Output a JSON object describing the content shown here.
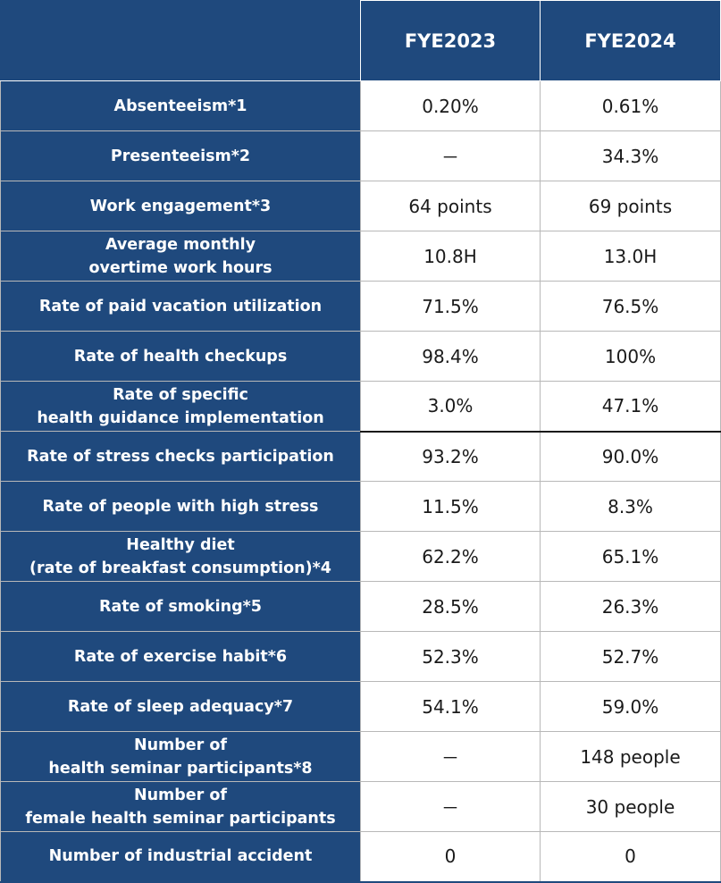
{
  "table": {
    "columns": [
      "",
      "FYE2023",
      "FYE2024"
    ],
    "rows": [
      {
        "label": "Absenteeism*1",
        "fye2023": "0.20%",
        "fye2024": "0.61%"
      },
      {
        "label": "Presenteeism*2",
        "fye2023": "－",
        "fye2024": "34.3%"
      },
      {
        "label": "Work engagement*3",
        "fye2023": "64 points",
        "fye2024": "69 points"
      },
      {
        "label": "Average monthly\novertime work hours",
        "fye2023": "10.8H",
        "fye2024": "13.0H"
      },
      {
        "label": "Rate of paid vacation utilization",
        "fye2023": "71.5%",
        "fye2024": "76.5%"
      },
      {
        "label": "Rate of health checkups",
        "fye2023": "98.4%",
        "fye2024": "100%"
      },
      {
        "label": "Rate of specific\nhealth guidance implementation",
        "fye2023": "3.0%",
        "fye2024": "47.1%"
      },
      {
        "label": "Rate of stress checks participation",
        "fye2023": "93.2%",
        "fye2024": "90.0%"
      },
      {
        "label": "Rate of people with high stress",
        "fye2023": "11.5%",
        "fye2024": "8.3%"
      },
      {
        "label": "Healthy diet\n(rate of breakfast consumption)*4",
        "fye2023": "62.2%",
        "fye2024": "65.1%"
      },
      {
        "label": "Rate of smoking*5",
        "fye2023": "28.5%",
        "fye2024": "26.3%"
      },
      {
        "label": "Rate of exercise habit*6",
        "fye2023": "52.3%",
        "fye2024": "52.7%"
      },
      {
        "label": "Rate of sleep adequacy*7",
        "fye2023": "54.1%",
        "fye2024": "59.0%"
      },
      {
        "label": "Number of\nhealth seminar participants*8",
        "fye2023": "－",
        "fye2024": "148 people"
      },
      {
        "label": "Number of\nfemale health seminar participants",
        "fye2023": "－",
        "fye2024": "30 people"
      },
      {
        "label": "Number of industrial accident",
        "fye2023": "0",
        "fye2024": "0"
      }
    ]
  },
  "colors": {
    "header_bg": "#1f497d",
    "header_text": "#ffffff",
    "cell_bg": "#ffffff",
    "cell_text": "#1a1a1a"
  }
}
